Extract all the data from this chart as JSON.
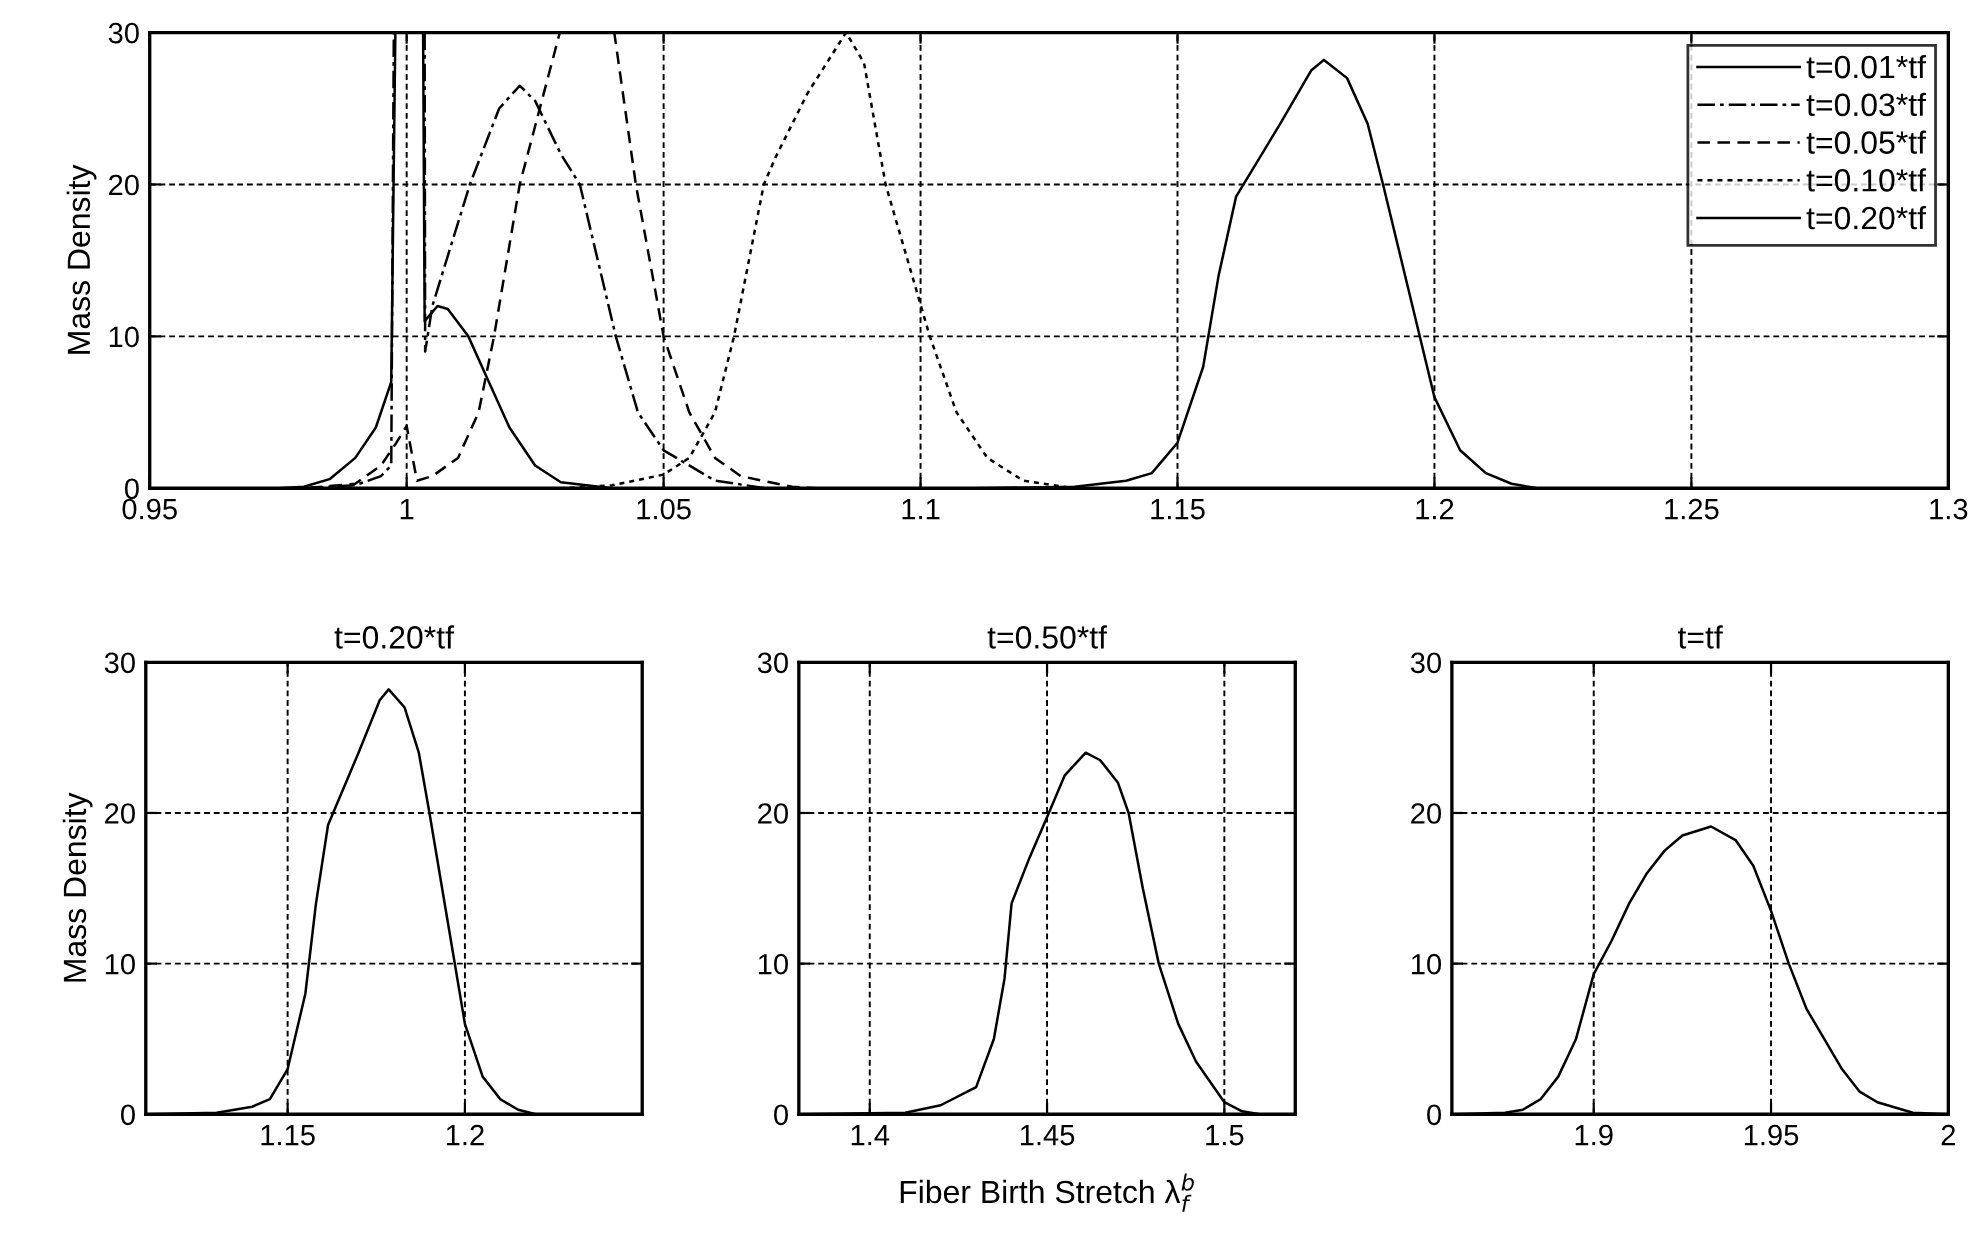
{
  "chart_data": [
    {
      "type": "line",
      "ylabel": "Mass Density",
      "xlim": [
        0.95,
        1.3
      ],
      "xticks": [
        0.95,
        1,
        1.05,
        1.1,
        1.15,
        1.2,
        1.25,
        1.3
      ],
      "ylim": [
        0,
        30
      ],
      "yticks": [
        0,
        10,
        20,
        30
      ],
      "grid": true,
      "legend": "top right",
      "marker": "none",
      "series": [
        {
          "name": "t=0.01*tf",
          "color": "#000000",
          "line_style": "solid",
          "x": [
            0.95,
            0.975,
            0.98,
            0.985,
            0.99,
            0.994,
            0.997,
            0.9978,
            1.0,
            1.0032,
            1.0035,
            1.004,
            1.006,
            1.008,
            1.012,
            1.016,
            1.02,
            1.025,
            1.03,
            1.04,
            1.3
          ],
          "values": [
            0,
            0,
            0.1,
            0.6,
            2,
            4,
            7,
            30,
            null,
            30,
            11,
            11.2,
            12,
            11.8,
            10,
            7,
            4,
            1.5,
            0.4,
            0,
            0
          ]
        },
        {
          "name": "t=0.03*tf",
          "color": "#000000",
          "line_style": "dashdot",
          "x": [
            0.95,
            0.98,
            0.99,
            0.995,
            0.997,
            0.9975,
            1.0,
            1.0035,
            1.0036,
            1.005,
            1.0123,
            1.018,
            1.022,
            1.025,
            1.03,
            1.0337,
            1.0407,
            1.045,
            1.05,
            1.06,
            1.07,
            1.3
          ],
          "values": [
            0,
            0,
            0.2,
            0.8,
            1.5,
            30,
            null,
            30,
            9,
            12,
            20,
            25,
            26.5,
            25.5,
            22,
            20,
            10,
            5,
            2.5,
            0.5,
            0,
            0
          ]
        },
        {
          "name": "t=0.05*tf",
          "color": "#000000",
          "line_style": "dashed",
          "x": [
            0.95,
            0.98,
            0.99,
            0.995,
            0.998,
            1.0,
            1.002,
            1.005,
            1.01,
            1.014,
            1.017,
            1.022,
            1.0298,
            1.035,
            1.0404,
            1.0446,
            1.05,
            1.055,
            1.06,
            1.065,
            1.075,
            1.08,
            1.3
          ],
          "values": [
            0,
            0,
            0.3,
            1.5,
            3,
            4.1,
            0.5,
            0.8,
            2,
            5,
            10,
            20,
            30,
            30,
            30,
            20,
            10,
            5,
            2,
            0.8,
            0.1,
            0,
            0
          ]
        },
        {
          "name": "t=0.10*tf",
          "color": "#000000",
          "line_style": "dotted",
          "x": [
            0.95,
            1.03,
            1.04,
            1.05,
            1.055,
            1.06,
            1.0637,
            1.0695,
            1.0718,
            1.078,
            1.0855,
            1.089,
            1.0932,
            1.1018,
            1.107,
            1.113,
            1.12,
            1.13,
            1.3
          ],
          "values": [
            0,
            0,
            0.2,
            0.9,
            2,
            5,
            10,
            20,
            21.8,
            26,
            30,
            28,
            20,
            10,
            5,
            2,
            0.5,
            0,
            0
          ]
        },
        {
          "name": "t=0.20*tf",
          "color": "#000000",
          "line_style": "solid",
          "x": [
            0.95,
            1.11,
            1.13,
            1.14,
            1.145,
            1.15,
            1.155,
            1.158,
            1.1614,
            1.17,
            1.176,
            1.1785,
            1.183,
            1.187,
            1.19,
            1.195,
            1.2,
            1.205,
            1.21,
            1.215,
            1.22,
            1.3
          ],
          "values": [
            0,
            0,
            0.1,
            0.5,
            1,
            3,
            8,
            14,
            19.2,
            24,
            27.5,
            28.2,
            27,
            24,
            20,
            13,
            6,
            2.5,
            1,
            0.3,
            0,
            0
          ]
        }
      ]
    },
    {
      "type": "line",
      "title": "t=0.20*tf",
      "ylabel": "Mass Density",
      "xlim": [
        1.11,
        1.25
      ],
      "xticks": [
        1.15,
        1.2
      ],
      "ylim": [
        0,
        30
      ],
      "yticks": [
        0,
        10,
        20,
        30
      ],
      "grid": true,
      "marker": "none",
      "series": [
        {
          "color": "#000000",
          "line_style": "solid",
          "x": [
            1.11,
            1.13,
            1.14,
            1.145,
            1.15,
            1.155,
            1.158,
            1.1614,
            1.17,
            1.176,
            1.1785,
            1.183,
            1.187,
            1.19,
            1.195,
            1.2,
            1.205,
            1.21,
            1.215,
            1.22,
            1.25
          ],
          "values": [
            0,
            0.1,
            0.5,
            1,
            3,
            8,
            14,
            19.2,
            24,
            27.5,
            28.2,
            27,
            24,
            20,
            13,
            6,
            2.5,
            1,
            0.3,
            0,
            0
          ]
        }
      ]
    },
    {
      "type": "line",
      "title": "t=0.50*tf",
      "xlabel": "Fiber Birth Stretch λ$^{b}$$_{f}$",
      "xlim": [
        1.38,
        1.52
      ],
      "xticks": [
        1.4,
        1.45,
        1.5
      ],
      "ylim": [
        0,
        30
      ],
      "yticks": [
        0,
        10,
        20,
        30
      ],
      "grid": true,
      "marker": "none",
      "series": [
        {
          "color": "#000000",
          "line_style": "solid",
          "x": [
            1.38,
            1.41,
            1.42,
            1.43,
            1.435,
            1.438,
            1.44,
            1.445,
            1.4505,
            1.455,
            1.4609,
            1.465,
            1.47,
            1.473,
            1.477,
            1.4815,
            1.487,
            1.492,
            1.5,
            1.505,
            1.51,
            1.52
          ],
          "values": [
            0,
            0.1,
            0.6,
            1.8,
            5,
            9,
            14,
            17,
            20,
            22.5,
            24,
            23.5,
            22,
            20,
            15,
            10,
            6,
            3.5,
            0.8,
            0.2,
            0,
            0
          ]
        }
      ]
    },
    {
      "type": "line",
      "title": "t=tf",
      "xlim": [
        1.86,
        2
      ],
      "xticks": [
        1.9,
        1.95,
        2
      ],
      "ylim": [
        0,
        30
      ],
      "yticks": [
        0,
        10,
        20,
        30
      ],
      "grid": true,
      "marker": "none",
      "series": [
        {
          "color": "#000000",
          "line_style": "solid",
          "x": [
            1.86,
            1.875,
            1.88,
            1.885,
            1.89,
            1.895,
            1.9,
            1.905,
            1.91,
            1.915,
            1.92,
            1.925,
            1.9331,
            1.94,
            1.945,
            1.95,
            1.955,
            1.96,
            1.965,
            1.97,
            1.975,
            1.98,
            1.99,
            2
          ],
          "values": [
            0,
            0.1,
            0.3,
            1,
            2.5,
            5,
            9.3,
            11.5,
            14,
            16,
            17.5,
            18.5,
            19.1,
            18.2,
            16.5,
            13.5,
            10,
            7,
            5,
            3,
            1.5,
            0.8,
            0.1,
            0
          ]
        }
      ]
    }
  ]
}
